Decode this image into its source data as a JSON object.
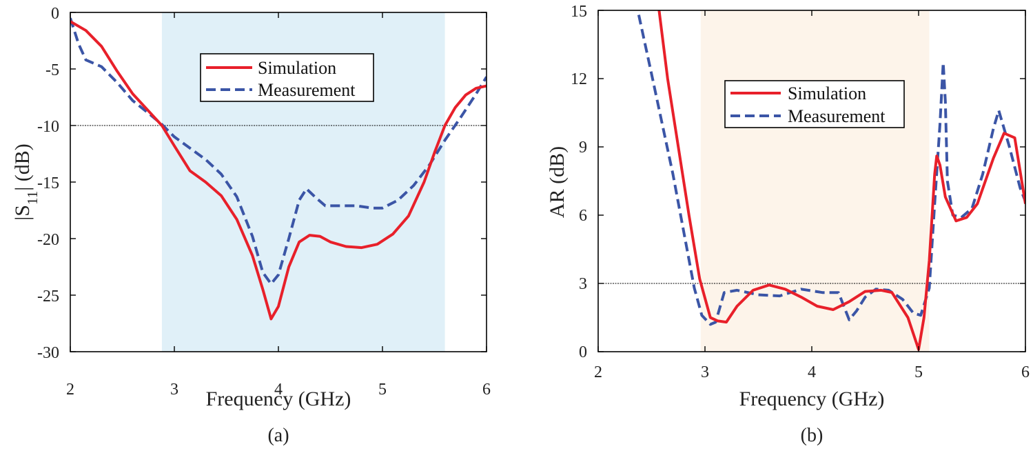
{
  "colors": {
    "simulation": "#e8202a",
    "measurement": "#3b55a6",
    "band_a": "#e0f0f8",
    "band_b": "#fdf4ea",
    "threshold": "#000000"
  },
  "chart_data": [
    {
      "type": "line",
      "caption": "(a)",
      "xlabel": "Frequency (GHz)",
      "ylabel_main": "|S",
      "ylabel_sub": "11",
      "ylabel_tail": "| (dB)",
      "xlim": [
        2,
        6
      ],
      "ylim": [
        -30,
        0
      ],
      "xticks": [
        2,
        3,
        4,
        5,
        6
      ],
      "yticks": [
        0,
        -5,
        -10,
        -15,
        -20,
        -25,
        -30
      ],
      "xtick_labels": [
        "2",
        "3",
        "4",
        "5",
        "6"
      ],
      "ytick_labels": [
        "0",
        "-5",
        "-10",
        "-15",
        "-20",
        "-25",
        "-30"
      ],
      "band": [
        2.88,
        5.6
      ],
      "threshold": -10,
      "legend": [
        "Simulation",
        "Measurement"
      ],
      "series": [
        {
          "name": "Simulation",
          "style": "solid",
          "x": [
            2.0,
            2.15,
            2.3,
            2.45,
            2.6,
            2.75,
            2.88,
            3.0,
            3.15,
            3.3,
            3.45,
            3.6,
            3.75,
            3.85,
            3.93,
            4.0,
            4.1,
            4.2,
            4.3,
            4.4,
            4.5,
            4.65,
            4.8,
            4.95,
            5.1,
            5.25,
            5.4,
            5.5,
            5.6,
            5.7,
            5.8,
            5.9,
            6.0
          ],
          "y": [
            -0.8,
            -1.6,
            -3.0,
            -5.2,
            -7.2,
            -8.7,
            -10.0,
            -11.8,
            -14.0,
            -15.0,
            -16.2,
            -18.3,
            -21.5,
            -24.5,
            -27.1,
            -26.0,
            -22.5,
            -20.3,
            -19.7,
            -19.8,
            -20.3,
            -20.7,
            -20.8,
            -20.5,
            -19.6,
            -18.0,
            -15.0,
            -12.4,
            -10.0,
            -8.4,
            -7.3,
            -6.7,
            -6.5
          ]
        },
        {
          "name": "Measurement",
          "style": "dashed",
          "x": [
            2.0,
            2.08,
            2.15,
            2.3,
            2.45,
            2.6,
            2.75,
            2.88,
            3.0,
            3.15,
            3.3,
            3.45,
            3.6,
            3.75,
            3.85,
            3.93,
            4.0,
            4.1,
            4.2,
            4.27,
            4.35,
            4.45,
            4.6,
            4.75,
            4.9,
            5.0,
            5.15,
            5.3,
            5.45,
            5.6,
            5.75,
            5.9,
            6.0
          ],
          "y": [
            -0.5,
            -2.8,
            -4.2,
            -4.8,
            -6.2,
            -7.8,
            -8.9,
            -9.9,
            -11.0,
            -12.0,
            -13.0,
            -14.3,
            -16.3,
            -19.8,
            -23.0,
            -24.0,
            -23.2,
            -20.0,
            -16.6,
            -15.6,
            -16.3,
            -17.1,
            -17.1,
            -17.1,
            -17.3,
            -17.3,
            -16.6,
            -15.3,
            -13.5,
            -11.3,
            -9.3,
            -7.2,
            -5.7
          ]
        }
      ]
    },
    {
      "type": "line",
      "caption": "(b)",
      "xlabel": "Frequency (GHz)",
      "ylabel": "AR (dB)",
      "xlim": [
        2,
        6
      ],
      "ylim": [
        0,
        15
      ],
      "xticks": [
        2,
        3,
        4,
        5,
        6
      ],
      "yticks": [
        0,
        3,
        6,
        9,
        12,
        15
      ],
      "xtick_labels": [
        "2",
        "3",
        "4",
        "5",
        "6"
      ],
      "ytick_labels": [
        "0",
        "3",
        "6",
        "9",
        "12",
        "15"
      ],
      "band": [
        2.96,
        5.1
      ],
      "threshold": 3,
      "legend": [
        "Simulation",
        "Measurement"
      ],
      "series": [
        {
          "name": "Simulation",
          "style": "solid",
          "x": [
            2.57,
            2.65,
            2.75,
            2.85,
            2.95,
            3.05,
            3.12,
            3.2,
            3.3,
            3.45,
            3.6,
            3.75,
            3.9,
            4.05,
            4.2,
            4.35,
            4.5,
            4.65,
            4.75,
            4.9,
            5.0,
            5.05,
            5.1,
            5.15,
            5.17,
            5.2,
            5.25,
            5.35,
            5.45,
            5.55,
            5.7,
            5.8,
            5.9,
            6.0
          ],
          "y": [
            15.0,
            12.0,
            9.0,
            6.0,
            3.2,
            1.5,
            1.35,
            1.3,
            2.0,
            2.7,
            2.93,
            2.75,
            2.4,
            2.0,
            1.85,
            2.2,
            2.65,
            2.7,
            2.6,
            1.5,
            0.1,
            1.5,
            4.0,
            7.8,
            8.6,
            8.2,
            6.8,
            5.75,
            5.9,
            6.5,
            8.5,
            9.6,
            9.4,
            6.5
          ]
        },
        {
          "name": "Measurement",
          "style": "dashed",
          "x": [
            2.38,
            2.5,
            2.6,
            2.7,
            2.8,
            2.9,
            2.97,
            3.05,
            3.1,
            3.18,
            3.3,
            3.5,
            3.7,
            3.9,
            4.1,
            4.25,
            4.3,
            4.35,
            4.42,
            4.5,
            4.6,
            4.72,
            4.85,
            4.95,
            5.02,
            5.1,
            5.15,
            5.2,
            5.23,
            5.25,
            5.27,
            5.32,
            5.4,
            5.5,
            5.6,
            5.7,
            5.75,
            5.85,
            5.95,
            6.0
          ],
          "y": [
            14.8,
            12.2,
            10.0,
            7.8,
            5.3,
            2.8,
            1.6,
            1.2,
            1.3,
            2.6,
            2.7,
            2.5,
            2.45,
            2.75,
            2.6,
            2.6,
            2.0,
            1.4,
            1.8,
            2.4,
            2.75,
            2.7,
            2.3,
            1.7,
            1.6,
            2.8,
            6.5,
            10.0,
            12.7,
            11.0,
            7.5,
            6.0,
            5.9,
            6.3,
            7.8,
            9.8,
            10.6,
            9.0,
            7.2,
            6.6
          ]
        }
      ]
    }
  ]
}
